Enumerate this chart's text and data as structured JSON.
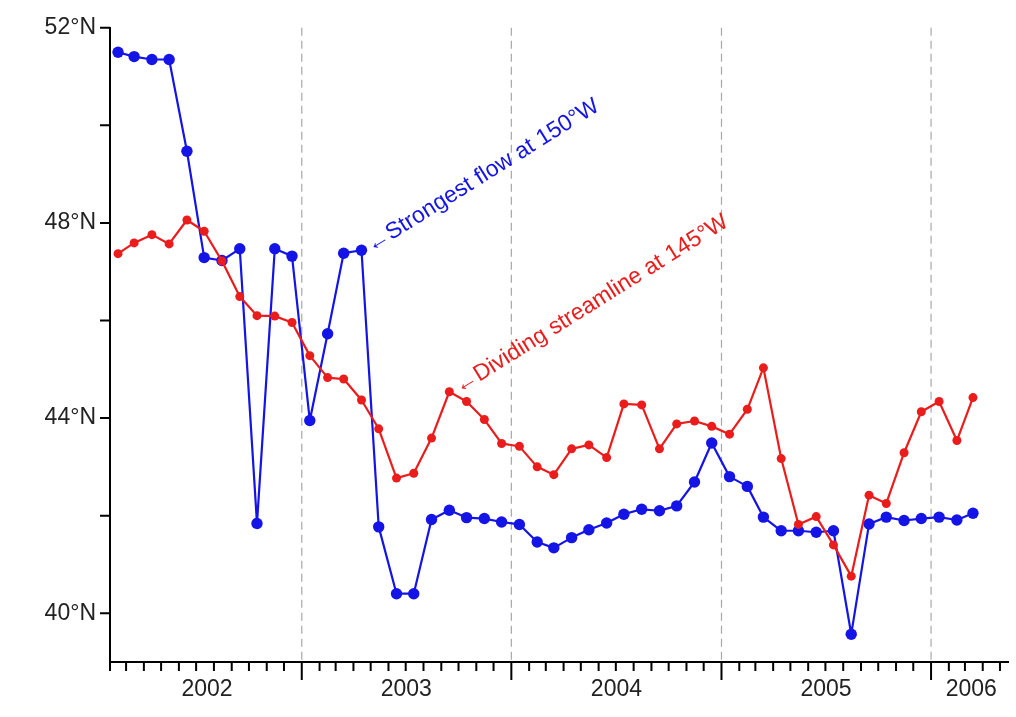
{
  "chart_data": {
    "type": "line",
    "marker": "circle",
    "line_style": "solid",
    "grid": false,
    "legend": false,
    "x": [
      "2002-02-15",
      "2002-03-15",
      "2002-04-15",
      "2002-05-15",
      "2002-06-15",
      "2002-07-15",
      "2002-08-15",
      "2002-09-15",
      "2002-10-15",
      "2002-11-15",
      "2002-12-15",
      "2003-01-15",
      "2003-02-15",
      "2003-03-15",
      "2003-04-15",
      "2003-05-15",
      "2003-06-15",
      "2003-07-15",
      "2003-08-15",
      "2003-09-15",
      "2003-10-15",
      "2003-11-15",
      "2003-12-15",
      "2004-01-15",
      "2004-02-15",
      "2004-03-15",
      "2004-04-15",
      "2004-05-15",
      "2004-06-15",
      "2004-07-15",
      "2004-08-15",
      "2004-09-15",
      "2004-10-15",
      "2004-11-15",
      "2004-12-15",
      "2005-01-15",
      "2005-02-15",
      "2005-03-15",
      "2005-04-15",
      "2005-05-15",
      "2005-06-15",
      "2005-07-15",
      "2005-08-15",
      "2005-09-15",
      "2005-10-15",
      "2005-11-15",
      "2005-12-15",
      "2006-01-15",
      "2006-02-15",
      "2006-03-15"
    ],
    "series": [
      {
        "color": "#ea1c1c",
        "values": [
          47.37,
          47.59,
          47.76,
          47.57,
          48.06,
          47.83,
          47.22,
          46.49,
          46.1,
          46.09,
          45.96,
          45.28,
          44.83,
          44.8,
          44.37,
          43.78,
          42.77,
          42.87,
          43.59,
          44.54,
          44.34,
          43.97,
          43.48,
          43.42,
          43.0,
          42.84,
          43.37,
          43.45,
          43.19,
          44.29,
          44.27,
          43.37,
          43.88,
          43.94,
          43.83,
          43.67,
          44.18,
          45.03,
          43.17,
          41.82,
          41.98,
          41.4,
          40.76,
          42.42,
          42.25,
          43.29,
          44.13,
          44.34,
          43.54,
          44.42
        ]
      },
      {
        "color": "#1414e6",
        "values": [
          51.5,
          51.41,
          51.35,
          51.35,
          49.47,
          47.29,
          47.23,
          47.47,
          41.84,
          47.47,
          47.32,
          43.95,
          45.73,
          47.38,
          47.44,
          41.77,
          40.4,
          40.4,
          41.92,
          42.11,
          41.96,
          41.94,
          41.87,
          41.82,
          41.46,
          41.34,
          41.55,
          41.71,
          41.85,
          42.03,
          42.13,
          42.1,
          42.2,
          42.69,
          43.49,
          42.8,
          42.6,
          41.97,
          41.69,
          41.69,
          41.66,
          41.69,
          39.57,
          41.83,
          41.97,
          41.9,
          41.94,
          41.97,
          41.91,
          42.05
        ]
      }
    ],
    "xlim": [
      "2002-02",
      "2006-05-15"
    ],
    "xticks": [
      {
        "value": "2002-02",
        "label": null
      },
      {
        "value": "2002-03",
        "label": null
      },
      {
        "value": "2002-04",
        "label": null
      },
      {
        "value": "2002-05",
        "label": null
      },
      {
        "value": "2002-06",
        "label": null
      },
      {
        "value": "2002-07",
        "label": null
      },
      {
        "value": "2002-08",
        "label": null
      },
      {
        "value": "2002-09",
        "label": null
      },
      {
        "value": "2002-10",
        "label": null
      },
      {
        "value": "2002-11",
        "label": null
      },
      {
        "value": "2002-12",
        "label": null
      },
      {
        "value": "2003-01",
        "label": null
      },
      {
        "value": "2003-02",
        "label": null
      },
      {
        "value": "2003-03",
        "label": null
      },
      {
        "value": "2003-04",
        "label": null
      },
      {
        "value": "2003-05",
        "label": null
      },
      {
        "value": "2003-06",
        "label": null
      },
      {
        "value": "2003-07",
        "label": null
      },
      {
        "value": "2003-08",
        "label": null
      },
      {
        "value": "2003-09",
        "label": null
      },
      {
        "value": "2003-10",
        "label": null
      },
      {
        "value": "2003-11",
        "label": null
      },
      {
        "value": "2003-12",
        "label": null
      },
      {
        "value": "2004-01",
        "label": null
      },
      {
        "value": "2004-02",
        "label": null
      },
      {
        "value": "2004-03",
        "label": null
      },
      {
        "value": "2004-04",
        "label": null
      },
      {
        "value": "2004-05",
        "label": null
      },
      {
        "value": "2004-06",
        "label": null
      },
      {
        "value": "2004-07",
        "label": null
      },
      {
        "value": "2004-08",
        "label": null
      },
      {
        "value": "2004-09",
        "label": null
      },
      {
        "value": "2004-10",
        "label": null
      },
      {
        "value": "2004-11",
        "label": null
      },
      {
        "value": "2004-12",
        "label": null
      },
      {
        "value": "2005-01",
        "label": null
      },
      {
        "value": "2005-02",
        "label": null
      },
      {
        "value": "2005-03",
        "label": null
      },
      {
        "value": "2005-04",
        "label": null
      },
      {
        "value": "2005-05",
        "label": null
      },
      {
        "value": "2005-06",
        "label": null
      },
      {
        "value": "2005-07",
        "label": null
      },
      {
        "value": "2005-08",
        "label": null
      },
      {
        "value": "2005-09",
        "label": null
      },
      {
        "value": "2005-10",
        "label": null
      },
      {
        "value": "2005-11",
        "label": null
      },
      {
        "value": "2005-12",
        "label": null
      },
      {
        "value": "2006-01",
        "label": null
      },
      {
        "value": "2006-02",
        "label": null
      },
      {
        "value": "2006-03",
        "label": null
      },
      {
        "value": "2006-04",
        "label": null
      },
      {
        "value": "2006-05",
        "label": null
      },
      {
        "value": "2002-07-20",
        "label": "2002"
      },
      {
        "value": "2003-07-02",
        "label": "2003"
      },
      {
        "value": "2004-07-02",
        "label": "2004"
      },
      {
        "value": "2005-07-02",
        "label": "2005"
      },
      {
        "value": "2006-03-12",
        "label": "2006"
      }
    ],
    "ylim": [
      39,
      52
    ],
    "yticks": [
      {
        "value": 40,
        "label": "40°N"
      },
      {
        "value": 42,
        "label": null
      },
      {
        "value": 44,
        "label": "44°N"
      },
      {
        "value": 46,
        "label": null
      },
      {
        "value": 48,
        "label": "48°N"
      },
      {
        "value": 50,
        "label": null
      },
      {
        "value": 52,
        "label": "52°N"
      }
    ],
    "ref_lines": [
      {
        "axis": "x",
        "value": "2003-01",
        "color": "#a8a8a8",
        "line_style": "dashed"
      },
      {
        "axis": "x",
        "value": "2004-01",
        "color": "#a8a8a8",
        "line_style": "dashed"
      },
      {
        "axis": "x",
        "value": "2005-01",
        "color": "#a8a8a8",
        "line_style": "dashed"
      },
      {
        "axis": "x",
        "value": "2006-01",
        "color": "#a8a8a8",
        "line_style": "dashed"
      }
    ],
    "annotations": [
      {
        "text": "←Dividing streamline at 145°W",
        "x": "2003-09-15",
        "y": 44.54
      },
      {
        "text": "←Strongest flow at 150°W",
        "x": "2003-04-15",
        "y": 47.44
      }
    ]
  }
}
